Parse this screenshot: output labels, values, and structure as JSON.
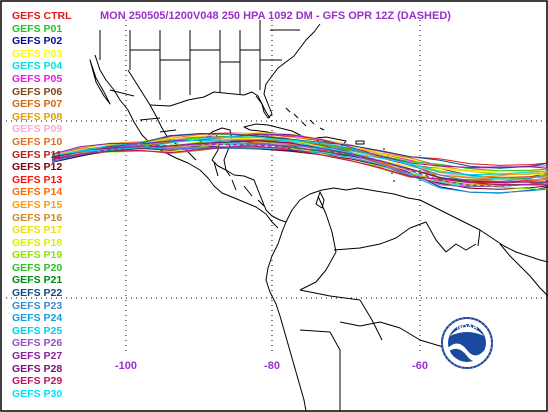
{
  "title": "MON 250505/1200V048  250 HPA 1092 DM - GFS OPR 12Z (DASHED)",
  "longitude_labels": [
    "-100",
    "-80",
    "-60"
  ],
  "logo_text": "NOAA",
  "legend": [
    {
      "label": "GEFS CTRL",
      "color": "#e01818"
    },
    {
      "label": "GEFS P01",
      "color": "#22c322"
    },
    {
      "label": "GEFS P02",
      "color": "#0a0a9a"
    },
    {
      "label": "GEFS P03",
      "color": "#ffff00"
    },
    {
      "label": "GEFS P04",
      "color": "#00e0e0"
    },
    {
      "label": "GEFS P05",
      "color": "#e020e0"
    },
    {
      "label": "GEFS P06",
      "color": "#7a4a1a"
    },
    {
      "label": "GEFS P07",
      "color": "#d06a10"
    },
    {
      "label": "GEFS P08",
      "color": "#e0a000"
    },
    {
      "label": "GEFS P09",
      "color": "#ffaad0"
    },
    {
      "label": "GEFS P10",
      "color": "#e07020"
    },
    {
      "label": "GEFS P11",
      "color": "#c01820"
    },
    {
      "label": "GEFS P12",
      "color": "#7a0010"
    },
    {
      "label": "GEFS P13",
      "color": "#ff1010"
    },
    {
      "label": "GEFS P14",
      "color": "#ff6a00"
    },
    {
      "label": "GEFS P15",
      "color": "#ff9a10"
    },
    {
      "label": "GEFS P16",
      "color": "#d08a20"
    },
    {
      "label": "GEFS P17",
      "color": "#f0e000"
    },
    {
      "label": "GEFS P18",
      "color": "#d8f000"
    },
    {
      "label": "GEFS P19",
      "color": "#90e000"
    },
    {
      "label": "GEFS P20",
      "color": "#30c020"
    },
    {
      "label": "GEFS P21",
      "color": "#008a10"
    },
    {
      "label": "GEFS P22",
      "color": "#104a8a"
    },
    {
      "label": "GEFS P23",
      "color": "#3a8ad0"
    },
    {
      "label": "GEFS P24",
      "color": "#10a0e0"
    },
    {
      "label": "GEFS P25",
      "color": "#00d0f0"
    },
    {
      "label": "GEFS P26",
      "color": "#9a50c0"
    },
    {
      "label": "GEFS P27",
      "color": "#8a20a0"
    },
    {
      "label": "GEFS P28",
      "color": "#7a1080"
    },
    {
      "label": "GEFS P29",
      "color": "#c01060"
    },
    {
      "label": "GEFS P30",
      "color": "#00e0ff"
    }
  ],
  "operational_color": "#9b30c8",
  "accent_color": "#9b30c8"
}
